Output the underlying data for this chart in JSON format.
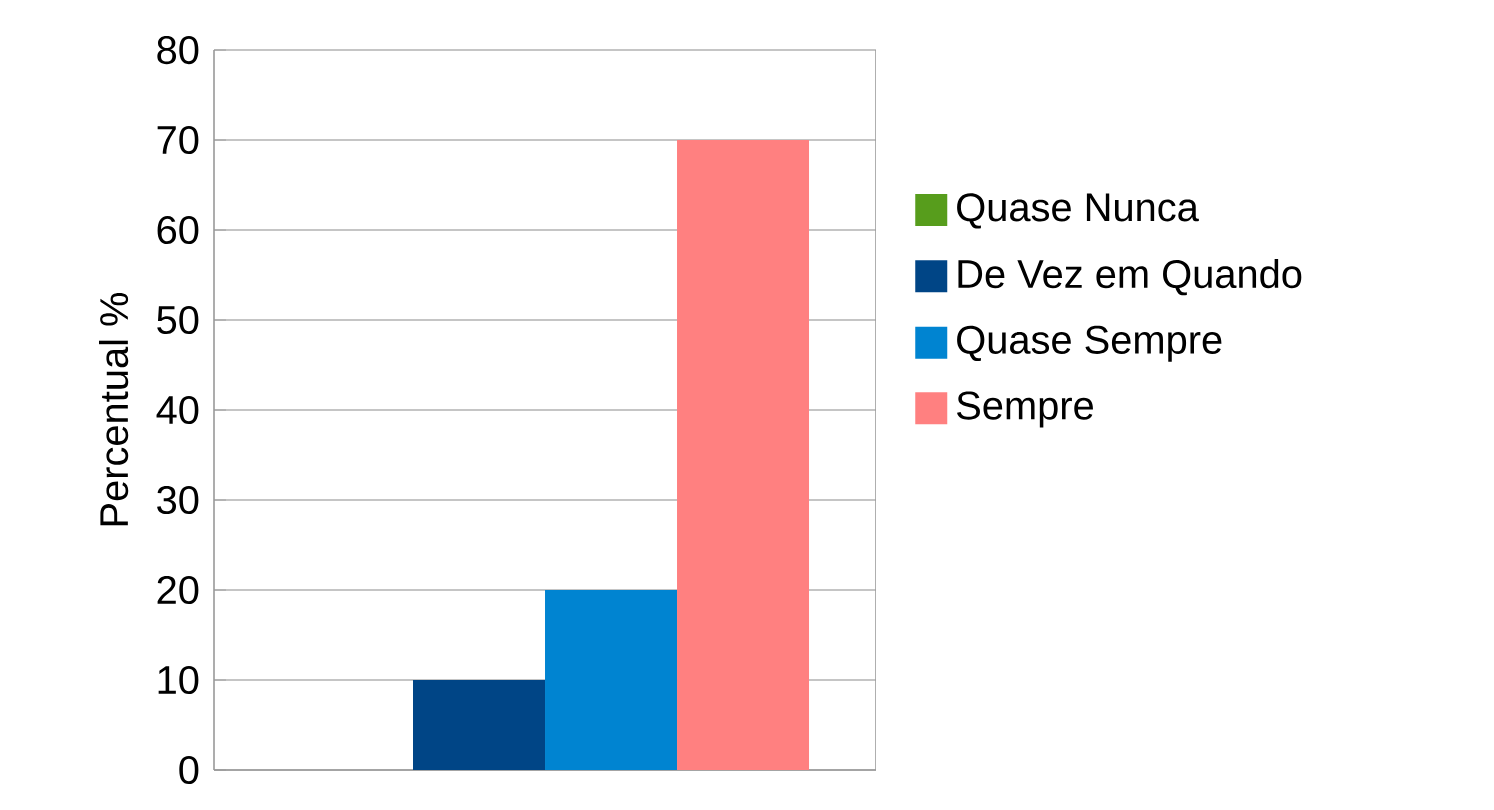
{
  "chart_data": {
    "type": "bar",
    "ylabel": "Percentual %",
    "categories": [
      null
    ],
    "series": [
      {
        "name": "Quase Nunca",
        "color": "#579d1c",
        "values": [
          0
        ]
      },
      {
        "name": "De Vez em Quando",
        "color": "#004586",
        "values": [
          10
        ]
      },
      {
        "name": "Quase Sempre",
        "color": "#0084d1",
        "values": [
          20
        ]
      },
      {
        "name": "Sempre",
        "color": "#ff8080",
        "values": [
          70
        ]
      }
    ],
    "ylim": [
      0,
      80
    ],
    "yticks": [
      0,
      10,
      20,
      30,
      40,
      50,
      60,
      70,
      80
    ],
    "grid": "y",
    "legend": "right"
  }
}
